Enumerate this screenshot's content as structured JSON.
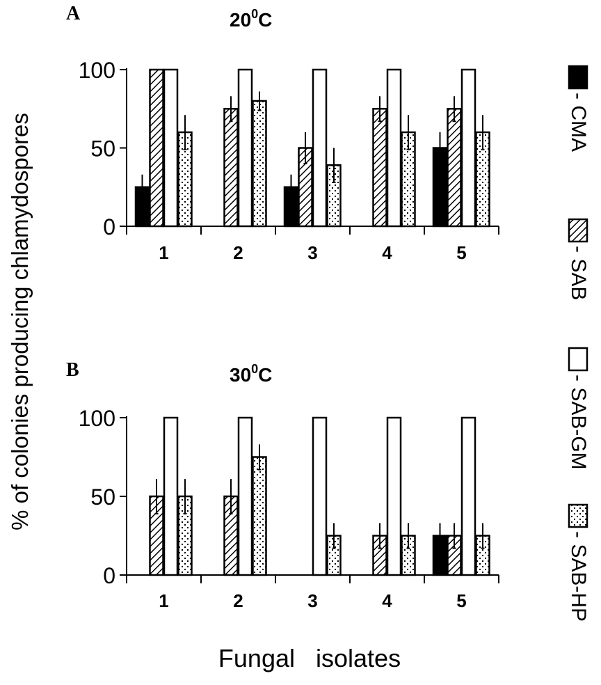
{
  "chart_data": [
    {
      "type": "bar",
      "panel_label": "A",
      "title": "20",
      "title_sup": "0",
      "title_unit": "C",
      "categories": [
        "1",
        "2",
        "3",
        "4",
        "5"
      ],
      "ylim": [
        0,
        100
      ],
      "yticks": [
        "0",
        "50",
        "100"
      ],
      "series": [
        {
          "name": "CMA",
          "values": [
            25,
            0,
            25,
            0,
            50
          ],
          "errors": [
            8,
            0,
            8,
            0,
            10
          ]
        },
        {
          "name": "SAB",
          "values": [
            100,
            75,
            50,
            75,
            75
          ],
          "errors": [
            0,
            8,
            10,
            8,
            8
          ]
        },
        {
          "name": "SAB-GM",
          "values": [
            100,
            100,
            100,
            100,
            100
          ],
          "errors": [
            0,
            0,
            0,
            0,
            0
          ]
        },
        {
          "name": "SAB-HP",
          "values": [
            60,
            80,
            39,
            60,
            60
          ],
          "errors": [
            11,
            6,
            11,
            11,
            11
          ]
        }
      ]
    },
    {
      "type": "bar",
      "panel_label": "B",
      "title": "30",
      "title_sup": "0",
      "title_unit": "C",
      "categories": [
        "1",
        "2",
        "3",
        "4",
        "5"
      ],
      "ylim": [
        0,
        100
      ],
      "yticks": [
        "0",
        "50",
        "100"
      ],
      "series": [
        {
          "name": "CMA",
          "values": [
            0,
            0,
            0,
            0,
            25
          ],
          "errors": [
            0,
            0,
            0,
            0,
            8
          ]
        },
        {
          "name": "SAB",
          "values": [
            50,
            50,
            0,
            25,
            25
          ],
          "errors": [
            11,
            11,
            0,
            8,
            8
          ]
        },
        {
          "name": "SAB-GM",
          "values": [
            100,
            100,
            100,
            100,
            100
          ],
          "errors": [
            0,
            0,
            0,
            0,
            0
          ]
        },
        {
          "name": "SAB-HP",
          "values": [
            50,
            75,
            25,
            25,
            25
          ],
          "errors": [
            11,
            8,
            8,
            8,
            8
          ]
        }
      ]
    }
  ],
  "ylabel": "% of colonies producing chlamydospores",
  "xlabel": "Fungal   isolates",
  "legend": [
    {
      "label": "- CMA",
      "pattern": "solid"
    },
    {
      "label": "- SAB",
      "pattern": "hatch"
    },
    {
      "label": "- SAB-GM",
      "pattern": "empty"
    },
    {
      "label": "- SAB-HP",
      "pattern": "dots"
    }
  ],
  "legend_placement": "right"
}
